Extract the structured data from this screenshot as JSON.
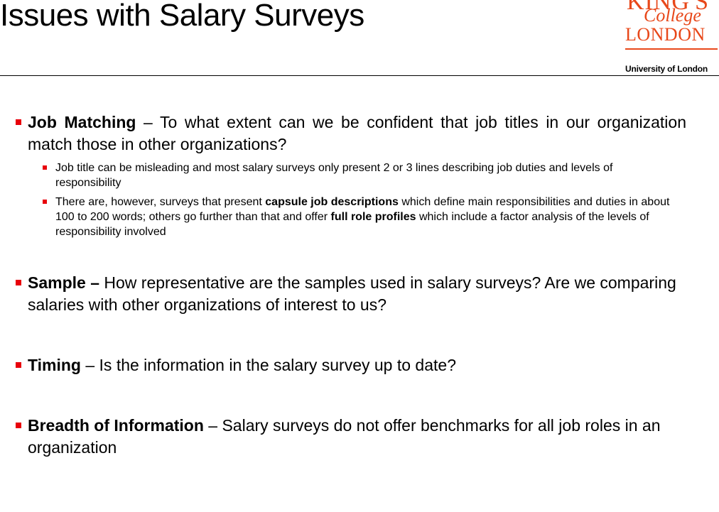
{
  "header": {
    "title": "Issues with Salary Surveys"
  },
  "logo": {
    "line1": "KING'S",
    "line2": "College",
    "line3": "LONDON",
    "tagline": "University of London",
    "brand_color": "#e8481a"
  },
  "bullets": {
    "job_matching": {
      "term": "Job Matching",
      "text": " – To what extent can we be confident that job titles in our organization match those in other organizations?",
      "sub1": "Job title can be misleading and most salary surveys only present 2 or 3 lines describing job duties and levels of responsibility",
      "sub2_a": "There are, however, surveys that present ",
      "sub2_b": "capsule job descriptions",
      "sub2_c": " which define main responsibilities and duties in about 100 to 200 words; others go further than that and offer ",
      "sub2_d": "full role profiles",
      "sub2_e": " which include a factor analysis of the levels of responsibility involved"
    },
    "sample": {
      "term": "Sample –",
      "text": " How representative are the samples used in salary surveys? Are we comparing salaries with other organizations of interest to us?"
    },
    "timing": {
      "term": "Timing",
      "text": " – Is the information in the salary survey up to date?"
    },
    "breadth": {
      "term": "Breadth of Information",
      "text": "  – Salary surveys do not offer benchmarks for all job roles in an organization"
    }
  },
  "colors": {
    "bullet_marker": "#e8000b",
    "text": "#000000",
    "background": "#ffffff"
  }
}
